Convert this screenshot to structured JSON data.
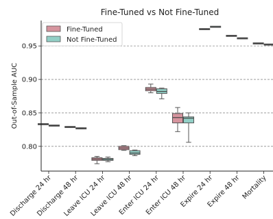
{
  "chart_data": {
    "type": "box",
    "title": "Fine-Tuned vs Not Fine-Tuned",
    "ylabel": "Out-of-Sample AUC",
    "xlabel": "",
    "ylim": [
      0.763,
      0.988
    ],
    "yticks": [
      0.8,
      0.85,
      0.9,
      0.95
    ],
    "ytick_labels": [
      "0.80",
      "0.85",
      "0.90",
      "0.95"
    ],
    "grid": "horizontal dashed",
    "legend_position": "top-left",
    "categories": [
      "Discharge 24 hr",
      "Discharge 48 hr",
      "Leave ICU 24 hr",
      "Leave ICU 48 hr",
      "Enter ICU 24 hr",
      "Enter ICU 48 hr",
      "Expire 24 hr",
      "Expire 48 hr",
      "Mortality"
    ],
    "series": [
      {
        "name": "Fine-Tuned",
        "color": "#d6949e",
        "boxes": [
          {
            "whislo": 0.8325,
            "q1": 0.8328,
            "med": 0.8331,
            "q3": 0.8334,
            "whishi": 0.8337
          },
          {
            "whislo": 0.8282,
            "q1": 0.8285,
            "med": 0.8289,
            "q3": 0.8293,
            "whishi": 0.8296
          },
          {
            "whislo": 0.774,
            "q1": 0.779,
            "med": 0.781,
            "q3": 0.783,
            "whishi": 0.785
          },
          {
            "whislo": 0.794,
            "q1": 0.795,
            "med": 0.7975,
            "q3": 0.8,
            "whishi": 0.801
          },
          {
            "whislo": 0.88,
            "q1": 0.883,
            "med": 0.8855,
            "q3": 0.888,
            "whishi": 0.893
          },
          {
            "whislo": 0.822,
            "q1": 0.835,
            "med": 0.843,
            "q3": 0.849,
            "whishi": 0.858
          },
          {
            "whislo": 0.9745,
            "q1": 0.9748,
            "med": 0.9751,
            "q3": 0.9755,
            "whishi": 0.9758
          },
          {
            "whislo": 0.9645,
            "q1": 0.9648,
            "med": 0.9651,
            "q3": 0.9654,
            "whishi": 0.9657
          },
          {
            "whislo": 0.9532,
            "q1": 0.9535,
            "med": 0.9538,
            "q3": 0.9541,
            "whishi": 0.9544
          }
        ]
      },
      {
        "name": "Not Fine-Tuned",
        "color": "#92cfc6",
        "boxes": [
          {
            "whislo": 0.8304,
            "q1": 0.8307,
            "med": 0.831,
            "q3": 0.8313,
            "whishi": 0.8316
          },
          {
            "whislo": 0.8262,
            "q1": 0.8265,
            "med": 0.8269,
            "q3": 0.8273,
            "whishi": 0.8276
          },
          {
            "whislo": 0.777,
            "q1": 0.779,
            "med": 0.7805,
            "q3": 0.782,
            "whishi": 0.784
          },
          {
            "whislo": 0.786,
            "q1": 0.788,
            "med": 0.79,
            "q3": 0.7935,
            "whishi": 0.7945
          },
          {
            "whislo": 0.871,
            "q1": 0.879,
            "med": 0.882,
            "q3": 0.886,
            "whishi": 0.887
          },
          {
            "whislo": 0.806,
            "q1": 0.835,
            "med": 0.842,
            "q3": 0.844,
            "whishi": 0.85
          },
          {
            "whislo": 0.978,
            "q1": 0.9783,
            "med": 0.9786,
            "q3": 0.979,
            "whishi": 0.9793
          },
          {
            "whislo": 0.9608,
            "q1": 0.9611,
            "med": 0.9614,
            "q3": 0.9617,
            "whishi": 0.962
          },
          {
            "whislo": 0.9515,
            "q1": 0.9518,
            "med": 0.9521,
            "q3": 0.9524,
            "whishi": 0.9527
          }
        ]
      }
    ],
    "colors": {
      "grid": "#8c8c8c",
      "axis": "#222222",
      "box_edge": "#555555",
      "median": "#444444"
    }
  }
}
